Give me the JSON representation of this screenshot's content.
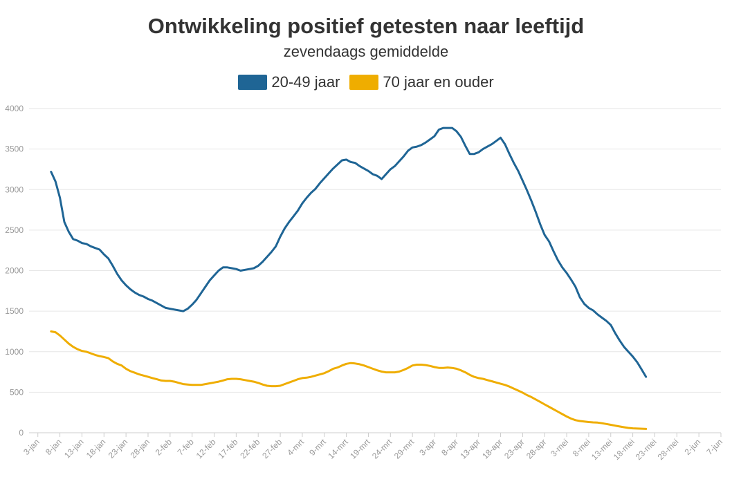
{
  "chart_data": {
    "type": "line",
    "title": "Ontwikkeling positief getesten naar leeftijd",
    "subtitle": "zevendaags gemiddelde",
    "ylim": [
      0,
      4000
    ],
    "yticks": [
      0,
      500,
      1000,
      1500,
      2000,
      2500,
      3000,
      3500,
      4000
    ],
    "xlim": [
      1,
      158
    ],
    "grid": true,
    "legend_position": "top-center",
    "x_tick_positions": [
      3,
      8,
      13,
      18,
      23,
      28,
      33,
      38,
      43,
      48,
      53,
      58,
      63,
      68,
      73,
      78,
      83,
      88,
      93,
      98,
      103,
      108,
      113,
      118,
      123,
      128,
      133,
      138,
      143,
      148,
      153,
      158
    ],
    "x_tick_labels": [
      "3-jan",
      "8-jan",
      "13-jan",
      "18-jan",
      "23-jan",
      "28-jan",
      "2-feb",
      "7-feb",
      "12-feb",
      "17-feb",
      "22-feb",
      "27-feb",
      "4-mrt",
      "9-mrt",
      "14-mrt",
      "19-mrt",
      "24-mrt",
      "29-mrt",
      "3-apr",
      "8-apr",
      "13-apr",
      "18-apr",
      "23-apr",
      "28-apr",
      "3-mei",
      "8-mei",
      "13-mei",
      "18-mei",
      "23-mei",
      "28-mei",
      "2-jun",
      "7-jun"
    ],
    "series": [
      {
        "name": "20-49 jaar",
        "color": "#1f6595",
        "points": [
          [
            6,
            3220
          ],
          [
            7,
            3100
          ],
          [
            8,
            2900
          ],
          [
            9,
            2600
          ],
          [
            10,
            2480
          ],
          [
            11,
            2390
          ],
          [
            12,
            2370
          ],
          [
            13,
            2340
          ],
          [
            14,
            2330
          ],
          [
            15,
            2300
          ],
          [
            16,
            2280
          ],
          [
            17,
            2260
          ],
          [
            18,
            2200
          ],
          [
            19,
            2150
          ],
          [
            20,
            2060
          ],
          [
            21,
            1960
          ],
          [
            22,
            1880
          ],
          [
            23,
            1820
          ],
          [
            24,
            1770
          ],
          [
            25,
            1730
          ],
          [
            26,
            1700
          ],
          [
            27,
            1680
          ],
          [
            28,
            1650
          ],
          [
            29,
            1630
          ],
          [
            30,
            1600
          ],
          [
            31,
            1570
          ],
          [
            32,
            1540
          ],
          [
            33,
            1530
          ],
          [
            34,
            1520
          ],
          [
            35,
            1510
          ],
          [
            36,
            1500
          ],
          [
            37,
            1530
          ],
          [
            38,
            1580
          ],
          [
            39,
            1640
          ],
          [
            40,
            1720
          ],
          [
            41,
            1800
          ],
          [
            42,
            1880
          ],
          [
            43,
            1940
          ],
          [
            44,
            2000
          ],
          [
            45,
            2040
          ],
          [
            46,
            2040
          ],
          [
            47,
            2030
          ],
          [
            48,
            2020
          ],
          [
            49,
            2000
          ],
          [
            50,
            2010
          ],
          [
            51,
            2020
          ],
          [
            52,
            2030
          ],
          [
            53,
            2060
          ],
          [
            54,
            2110
          ],
          [
            55,
            2170
          ],
          [
            56,
            2230
          ],
          [
            57,
            2300
          ],
          [
            58,
            2420
          ],
          [
            59,
            2520
          ],
          [
            60,
            2600
          ],
          [
            61,
            2670
          ],
          [
            62,
            2740
          ],
          [
            63,
            2830
          ],
          [
            64,
            2900
          ],
          [
            65,
            2960
          ],
          [
            66,
            3010
          ],
          [
            67,
            3080
          ],
          [
            68,
            3140
          ],
          [
            69,
            3200
          ],
          [
            70,
            3260
          ],
          [
            71,
            3310
          ],
          [
            72,
            3360
          ],
          [
            73,
            3370
          ],
          [
            74,
            3340
          ],
          [
            75,
            3330
          ],
          [
            76,
            3290
          ],
          [
            77,
            3260
          ],
          [
            78,
            3230
          ],
          [
            79,
            3190
          ],
          [
            80,
            3170
          ],
          [
            81,
            3130
          ],
          [
            82,
            3190
          ],
          [
            83,
            3250
          ],
          [
            84,
            3290
          ],
          [
            85,
            3350
          ],
          [
            86,
            3410
          ],
          [
            87,
            3480
          ],
          [
            88,
            3520
          ],
          [
            89,
            3530
          ],
          [
            90,
            3550
          ],
          [
            91,
            3580
          ],
          [
            92,
            3620
          ],
          [
            93,
            3660
          ],
          [
            94,
            3740
          ],
          [
            95,
            3760
          ],
          [
            96,
            3760
          ],
          [
            97,
            3760
          ],
          [
            98,
            3720
          ],
          [
            99,
            3650
          ],
          [
            100,
            3540
          ],
          [
            101,
            3440
          ],
          [
            102,
            3440
          ],
          [
            103,
            3460
          ],
          [
            104,
            3500
          ],
          [
            105,
            3530
          ],
          [
            106,
            3560
          ],
          [
            107,
            3600
          ],
          [
            108,
            3640
          ],
          [
            109,
            3560
          ],
          [
            110,
            3440
          ],
          [
            111,
            3330
          ],
          [
            112,
            3230
          ],
          [
            113,
            3110
          ],
          [
            114,
            2990
          ],
          [
            115,
            2860
          ],
          [
            116,
            2720
          ],
          [
            117,
            2570
          ],
          [
            118,
            2440
          ],
          [
            119,
            2360
          ],
          [
            120,
            2240
          ],
          [
            121,
            2130
          ],
          [
            122,
            2040
          ],
          [
            123,
            1970
          ],
          [
            124,
            1890
          ],
          [
            125,
            1800
          ],
          [
            126,
            1670
          ],
          [
            127,
            1590
          ],
          [
            128,
            1540
          ],
          [
            129,
            1510
          ],
          [
            130,
            1460
          ],
          [
            131,
            1420
          ],
          [
            132,
            1380
          ],
          [
            133,
            1330
          ],
          [
            134,
            1230
          ],
          [
            135,
            1140
          ],
          [
            136,
            1060
          ],
          [
            137,
            1000
          ],
          [
            138,
            940
          ],
          [
            139,
            870
          ],
          [
            140,
            780
          ],
          [
            141,
            690
          ]
        ]
      },
      {
        "name": "70 jaar en ouder",
        "color": "#efad00",
        "points": [
          [
            6,
            1250
          ],
          [
            7,
            1240
          ],
          [
            8,
            1200
          ],
          [
            9,
            1150
          ],
          [
            10,
            1100
          ],
          [
            11,
            1060
          ],
          [
            12,
            1030
          ],
          [
            13,
            1010
          ],
          [
            14,
            1000
          ],
          [
            15,
            980
          ],
          [
            16,
            960
          ],
          [
            17,
            945
          ],
          [
            18,
            935
          ],
          [
            19,
            920
          ],
          [
            20,
            880
          ],
          [
            21,
            850
          ],
          [
            22,
            830
          ],
          [
            23,
            790
          ],
          [
            24,
            760
          ],
          [
            25,
            740
          ],
          [
            26,
            720
          ],
          [
            27,
            705
          ],
          [
            28,
            690
          ],
          [
            29,
            675
          ],
          [
            30,
            660
          ],
          [
            31,
            645
          ],
          [
            32,
            640
          ],
          [
            33,
            640
          ],
          [
            34,
            630
          ],
          [
            35,
            615
          ],
          [
            36,
            600
          ],
          [
            37,
            595
          ],
          [
            38,
            590
          ],
          [
            39,
            590
          ],
          [
            40,
            590
          ],
          [
            41,
            600
          ],
          [
            42,
            610
          ],
          [
            43,
            620
          ],
          [
            44,
            630
          ],
          [
            45,
            645
          ],
          [
            46,
            660
          ],
          [
            47,
            665
          ],
          [
            48,
            665
          ],
          [
            49,
            660
          ],
          [
            50,
            650
          ],
          [
            51,
            640
          ],
          [
            52,
            630
          ],
          [
            53,
            615
          ],
          [
            54,
            595
          ],
          [
            55,
            580
          ],
          [
            56,
            575
          ],
          [
            57,
            575
          ],
          [
            58,
            580
          ],
          [
            59,
            600
          ],
          [
            60,
            620
          ],
          [
            61,
            640
          ],
          [
            62,
            660
          ],
          [
            63,
            675
          ],
          [
            64,
            680
          ],
          [
            65,
            690
          ],
          [
            66,
            705
          ],
          [
            67,
            720
          ],
          [
            68,
            735
          ],
          [
            69,
            760
          ],
          [
            70,
            790
          ],
          [
            71,
            805
          ],
          [
            72,
            830
          ],
          [
            73,
            850
          ],
          [
            74,
            860
          ],
          [
            75,
            855
          ],
          [
            76,
            845
          ],
          [
            77,
            830
          ],
          [
            78,
            810
          ],
          [
            79,
            790
          ],
          [
            80,
            770
          ],
          [
            81,
            755
          ],
          [
            82,
            745
          ],
          [
            83,
            745
          ],
          [
            84,
            745
          ],
          [
            85,
            755
          ],
          [
            86,
            775
          ],
          [
            87,
            800
          ],
          [
            88,
            830
          ],
          [
            89,
            840
          ],
          [
            90,
            840
          ],
          [
            91,
            835
          ],
          [
            92,
            825
          ],
          [
            93,
            810
          ],
          [
            94,
            800
          ],
          [
            95,
            800
          ],
          [
            96,
            805
          ],
          [
            97,
            800
          ],
          [
            98,
            790
          ],
          [
            99,
            770
          ],
          [
            100,
            745
          ],
          [
            101,
            715
          ],
          [
            102,
            690
          ],
          [
            103,
            675
          ],
          [
            104,
            665
          ],
          [
            105,
            650
          ],
          [
            106,
            635
          ],
          [
            107,
            620
          ],
          [
            108,
            605
          ],
          [
            109,
            590
          ],
          [
            110,
            570
          ],
          [
            111,
            545
          ],
          [
            112,
            520
          ],
          [
            113,
            495
          ],
          [
            114,
            465
          ],
          [
            115,
            440
          ],
          [
            116,
            410
          ],
          [
            117,
            380
          ],
          [
            118,
            350
          ],
          [
            119,
            320
          ],
          [
            120,
            290
          ],
          [
            121,
            260
          ],
          [
            122,
            230
          ],
          [
            123,
            200
          ],
          [
            124,
            175
          ],
          [
            125,
            155
          ],
          [
            126,
            145
          ],
          [
            127,
            138
          ],
          [
            128,
            132
          ],
          [
            129,
            128
          ],
          [
            130,
            125
          ],
          [
            131,
            118
          ],
          [
            132,
            108
          ],
          [
            133,
            98
          ],
          [
            134,
            88
          ],
          [
            135,
            78
          ],
          [
            136,
            68
          ],
          [
            137,
            60
          ],
          [
            138,
            55
          ],
          [
            139,
            52
          ],
          [
            140,
            50
          ],
          [
            141,
            48
          ]
        ]
      }
    ]
  }
}
